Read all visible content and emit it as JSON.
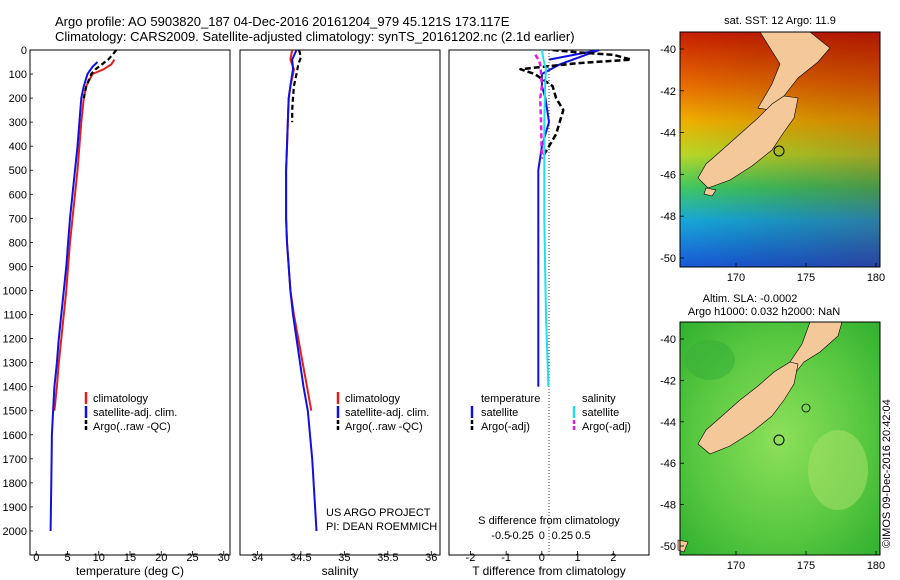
{
  "header": {
    "line1": "Argo profile: AO 5903820_187 04-Dec-2016 20161204_979 45.121S 173.117E",
    "line2": "Climatology: CARS2009. Satellite-adjusted climatology: synTS_20161202.nc (2.1d earlier)"
  },
  "footer_credit": "©IMOS 09-Dec-2016 20:42:04",
  "project_label": "US ARGO PROJECT",
  "pi_label": "PI: DEAN ROEMMICH",
  "colors": {
    "climatology": "#e02020",
    "satellite": "#1010e0",
    "argo": "#000000",
    "salinity_satellite": "#20e0f0",
    "salinity_argo": "#e020e0",
    "land": "#f5c89a"
  },
  "depth_axis": {
    "ticks": [
      "0",
      "100",
      "200",
      "300",
      "400",
      "500",
      "600",
      "700",
      "800",
      "900",
      "1000",
      "1100",
      "1200",
      "1300",
      "1400",
      "1500",
      "1600",
      "1700",
      "1800",
      "1900",
      "2000"
    ]
  },
  "chart_data": [
    {
      "type": "line",
      "id": "temperature",
      "xlabel": "temperature (deg C)",
      "xlim": [
        -1,
        31
      ],
      "ylim": [
        2100,
        0
      ],
      "xticks": [
        "0",
        "5",
        "10",
        "15",
        "20",
        "25",
        "30"
      ],
      "legend": [
        "climatology",
        "satellite-adj. clim.",
        "Argo(..raw -QC)"
      ],
      "series": [
        {
          "name": "climatology",
          "x": [
            12.5,
            12.0,
            10.8,
            9.0,
            8.0,
            7.6,
            7.2,
            6.9,
            6.6,
            6.2,
            5.8,
            5.4,
            5.1,
            4.8,
            4.4,
            4.0,
            3.6,
            3.3,
            2.9
          ],
          "y": [
            40,
            60,
            80,
            100,
            150,
            200,
            300,
            400,
            500,
            600,
            700,
            800,
            900,
            1000,
            1100,
            1200,
            1300,
            1400,
            1500
          ]
        },
        {
          "name": "satellite-adj. clim.",
          "x": [
            9.8,
            9.0,
            8.2,
            7.6,
            7.2,
            6.9,
            6.6,
            6.2,
            5.8,
            5.4,
            5.1,
            4.8,
            4.4,
            4.0,
            3.6,
            3.3,
            2.9,
            2.7,
            2.5,
            2.4,
            2.3
          ],
          "y": [
            50,
            70,
            100,
            150,
            200,
            300,
            400,
            500,
            600,
            700,
            800,
            900,
            1000,
            1100,
            1200,
            1300,
            1400,
            1500,
            1600,
            1800,
            2000
          ]
        },
        {
          "name": "Argo(..raw -QC)",
          "x": [
            12.8,
            12.2,
            11.5,
            10.5,
            9.5,
            8.8,
            8.0,
            7.6
          ],
          "y": [
            0,
            20,
            40,
            60,
            80,
            100,
            150,
            200
          ]
        }
      ]
    },
    {
      "type": "line",
      "id": "salinity",
      "xlabel": "salinity",
      "xlim": [
        33.8,
        36.1
      ],
      "ylim": [
        2100,
        0
      ],
      "xticks": [
        "34",
        "34.5",
        "35",
        "35.5",
        "36"
      ],
      "legend": [
        "climatology",
        "satellite-adj. clim.",
        "Argo(..raw -QC)"
      ],
      "series": [
        {
          "name": "climatology",
          "x": [
            34.4,
            34.38,
            34.42,
            34.41,
            34.38,
            34.36,
            34.35,
            34.34,
            34.33,
            34.33,
            34.33,
            34.34,
            34.36,
            34.38,
            34.42,
            34.47,
            34.52,
            34.57,
            34.62
          ],
          "y": [
            0,
            40,
            80,
            100,
            150,
            200,
            300,
            400,
            500,
            600,
            700,
            800,
            900,
            1000,
            1100,
            1200,
            1300,
            1400,
            1500
          ]
        },
        {
          "name": "satellite-adj. clim.",
          "x": [
            34.45,
            34.4,
            34.41,
            34.4,
            34.38,
            34.36,
            34.35,
            34.34,
            34.33,
            34.33,
            34.33,
            34.34,
            34.36,
            34.38,
            34.41,
            34.45,
            34.49,
            34.53,
            34.58,
            34.63,
            34.68
          ],
          "y": [
            0,
            40,
            80,
            100,
            150,
            200,
            300,
            400,
            500,
            600,
            700,
            800,
            900,
            1000,
            1100,
            1200,
            1300,
            1400,
            1500,
            1700,
            2000
          ]
        },
        {
          "name": "Argo(..raw -QC)",
          "x": [
            34.48,
            34.5,
            34.47,
            34.45,
            34.42,
            34.41,
            34.4,
            34.4
          ],
          "y": [
            0,
            30,
            60,
            100,
            150,
            200,
            250,
            300
          ]
        }
      ]
    },
    {
      "type": "line",
      "id": "differences",
      "xlabel": "T difference from climatology",
      "xlabel2": "S difference from climatology",
      "xlim": [
        -2.6,
        3.0
      ],
      "ylim": [
        2100,
        0
      ],
      "xticks_T": [
        "-2",
        "-1",
        "0",
        "1",
        "2"
      ],
      "xticks_S": [
        "-0.5",
        "-0.25",
        "0",
        "0.25",
        "0.5"
      ],
      "legend_title_T": "temperature",
      "legend_title_S": "salinity",
      "legend": [
        "satellite",
        "Argo(-adj)",
        "satellite",
        "Argo(-adj)"
      ],
      "series": [
        {
          "name": "satellite",
          "x": [
            0.2,
            1.6,
            0.5,
            0.0,
            0.0,
            0.1,
            0.2,
            0.0,
            -0.1,
            -0.1,
            -0.1,
            -0.1,
            -0.1,
            -0.1,
            -0.1,
            -0.1,
            -0.1
          ],
          "y": [
            40,
            0,
            60,
            100,
            150,
            200,
            300,
            400,
            500,
            600,
            800,
            1000,
            1100,
            1200,
            1300,
            1400,
            1400
          ]
        },
        {
          "name": "Argo(-adj)",
          "x": [
            0.3,
            1.0,
            2.0,
            2.5,
            1.0,
            -0.6,
            -0.2,
            0.3,
            0.4,
            0.6,
            0.5,
            0.4,
            0.2,
            0.0
          ],
          "y": [
            0,
            10,
            20,
            40,
            55,
            80,
            100,
            150,
            200,
            250,
            300,
            350,
            400,
            450
          ]
        },
        {
          "name": "satellite",
          "x": [
            0.0,
            0.02,
            0.05,
            0.04,
            0.03,
            0.03,
            0.03,
            0.04,
            0.05,
            0.06,
            0.07,
            0.08,
            0.08
          ],
          "y": [
            0,
            40,
            80,
            150,
            300,
            500,
            700,
            900,
            1100,
            1200,
            1300,
            1400,
            1400
          ]
        },
        {
          "name": "Argo(-adj)",
          "x": [
            -0.08,
            -0.04,
            -0.02,
            -0.01,
            0.0,
            -0.02,
            -0.01,
            0.0
          ],
          "y": [
            20,
            40,
            60,
            100,
            150,
            200,
            300,
            450
          ]
        }
      ]
    }
  ],
  "maps": [
    {
      "id": "sst-map",
      "title": "sat. SST: 12 Argo: 11.9",
      "xticks": [
        "170",
        "175",
        "180"
      ],
      "yticks": [
        "-40",
        "-42",
        "-44",
        "-46",
        "-48",
        "-50"
      ]
    },
    {
      "id": "sla-map",
      "title1": "Altim. SLA: -0.0002",
      "title2": "Argo h1000: 0.032 h2000: NaN",
      "xticks": [
        "170",
        "175",
        "180"
      ],
      "yticks": [
        "-40",
        "-42",
        "-44",
        "-46",
        "-48",
        "-50"
      ]
    }
  ]
}
